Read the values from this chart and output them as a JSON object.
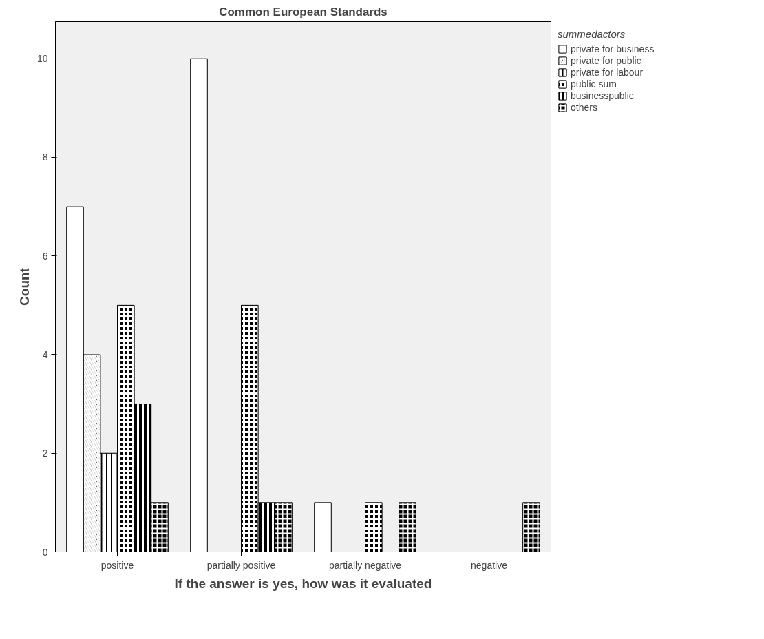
{
  "chart_data": {
    "type": "bar",
    "title": "Common European Standards",
    "xlabel": "If the answer is yes, how was it evaluated",
    "ylabel": "Count",
    "legend_title": "summedactors",
    "categories": [
      "positive",
      "partially positive",
      "partially negative",
      "negative"
    ],
    "series": [
      {
        "name": "private for business",
        "color": "#ffffff",
        "values": [
          7,
          10,
          1,
          null
        ]
      },
      {
        "name": "private for public",
        "color": "#000000",
        "values": [
          4,
          null,
          null,
          null
        ]
      },
      {
        "name": "private for labour",
        "color": "#000000",
        "values": [
          2,
          null,
          null,
          null
        ]
      },
      {
        "name": "public sum",
        "color": "#000000",
        "values": [
          5,
          5,
          1,
          null
        ]
      },
      {
        "name": "businesspublic",
        "color": "#000000",
        "values": [
          3,
          1,
          null,
          null
        ]
      },
      {
        "name": "others",
        "color": "#000000",
        "values": [
          1,
          1,
          1,
          1
        ]
      }
    ],
    "ylim": [
      0,
      10.75
    ],
    "yticks": [
      0,
      2,
      4,
      6,
      8,
      10
    ],
    "grid": false,
    "legend": "top right"
  }
}
